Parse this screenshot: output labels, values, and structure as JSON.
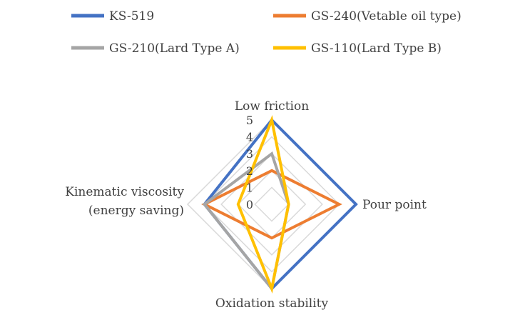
{
  "chart_data": {
    "type": "radar",
    "axes": [
      "Low friction",
      "Pour point",
      "Oxidation stability",
      "Kinematic viscosity (energy saving)"
    ],
    "axis_label_lines": [
      [
        "Low friction"
      ],
      [
        "Pour point"
      ],
      [
        "Oxidation stability"
      ],
      [
        "Kinematic viscosity",
        "(energy saving)"
      ]
    ],
    "r_range": [
      0,
      5
    ],
    "r_ticks": [
      "0",
      "1",
      "2",
      "3",
      "4",
      "5"
    ],
    "grid": true,
    "legend_position": "top",
    "series": [
      {
        "name": "KS-519",
        "color": "#4472C4",
        "values": [
          5,
          5,
          5,
          4
        ]
      },
      {
        "name": "GS-240(Vetable oil type)",
        "color": "#ED7D31",
        "values": [
          2,
          4,
          2,
          4
        ]
      },
      {
        "name": "GS-210(Lard Type A)",
        "color": "#A5A5A5",
        "values": [
          3,
          1,
          5,
          4
        ]
      },
      {
        "name": "GS-110(Lard Type B)",
        "color": "#FFC000",
        "values": [
          5,
          1,
          5,
          2
        ]
      }
    ]
  }
}
